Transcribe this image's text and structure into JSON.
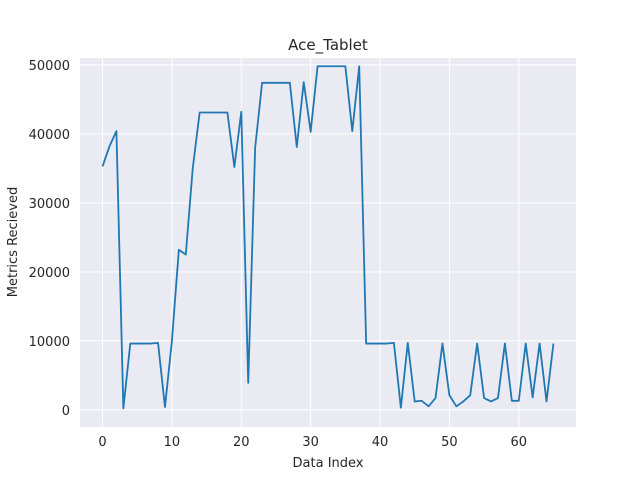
{
  "chart_data": {
    "type": "line",
    "title": "Ace_Tablet",
    "xlabel": "Data Index",
    "ylabel": "Metrics Recieved",
    "xlim": [
      -3.25,
      68.25
    ],
    "ylim": [
      -2500,
      51000
    ],
    "xticks": [
      0,
      10,
      20,
      30,
      40,
      50,
      60
    ],
    "yticks": [
      0,
      10000,
      20000,
      30000,
      40000,
      50000
    ],
    "grid": true,
    "background": "#eaeaf2",
    "line_color": "#1f77b4",
    "series": [
      {
        "x": [
          0,
          1,
          2,
          3,
          4,
          5,
          6,
          7,
          8,
          9,
          10,
          11,
          12,
          13,
          14,
          15,
          16,
          17,
          18,
          19,
          20,
          21,
          22,
          23,
          24,
          25,
          26,
          27,
          28,
          29,
          30,
          31,
          32,
          33,
          34,
          35,
          36,
          37,
          38,
          39,
          40,
          41,
          42,
          43,
          44,
          45,
          46,
          47,
          48,
          49,
          50,
          51,
          52,
          53,
          54,
          55,
          56,
          57,
          58,
          59,
          60,
          61,
          62,
          63,
          64,
          65
        ],
        "values": [
          35300,
          38200,
          40400,
          200,
          9600,
          9600,
          9600,
          9600,
          9700,
          400,
          10000,
          23200,
          22500,
          35000,
          43100,
          43100,
          43100,
          43100,
          43100,
          35200,
          43200,
          3900,
          38000,
          47400,
          47400,
          47400,
          47400,
          47400,
          38100,
          47500,
          40300,
          49800,
          49800,
          49800,
          49800,
          49800,
          40400,
          49800,
          9600,
          9600,
          9600,
          9600,
          9700,
          300,
          9700,
          1200,
          1300,
          500,
          1700,
          9600,
          2100,
          500,
          1200,
          2100,
          9600,
          1700,
          1200,
          1700,
          9600,
          1300,
          1300,
          9600,
          1800,
          9600,
          1200,
          9600
        ]
      }
    ]
  }
}
